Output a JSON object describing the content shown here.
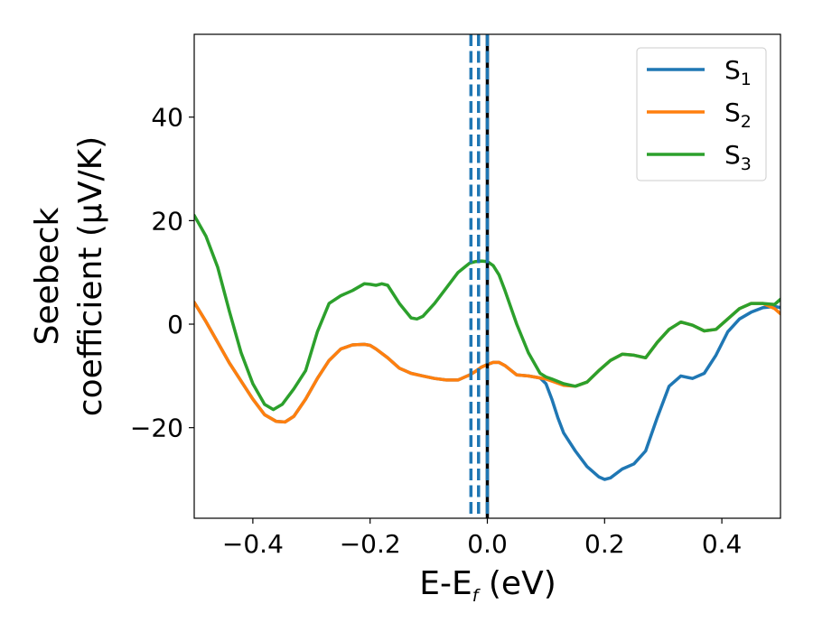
{
  "chart_data": {
    "type": "line",
    "xlabel": {
      "main": "E-E",
      "sub": "f",
      "tail": " (eV)"
    },
    "ylabel": {
      "line1": "Seebeck",
      "line2": "coefficient  (μV/K)"
    },
    "xlim": [
      -0.5,
      0.5
    ],
    "ylim": [
      -37.5,
      56
    ],
    "xticks": [
      -0.4,
      -0.2,
      0.0,
      0.2,
      0.4
    ],
    "xtick_labels": [
      "−0.4",
      "−0.2",
      "0.0",
      "0.2",
      "0.4"
    ],
    "yticks": [
      -20,
      0,
      20,
      40
    ],
    "ytick_labels": [
      "−20",
      "0",
      "20",
      "40"
    ],
    "grid": false,
    "legend_position": "top-right",
    "vlines": [
      {
        "x": -0.028,
        "style": "dashed",
        "color": "#1f77b4"
      },
      {
        "x": -0.015,
        "style": "dashed",
        "color": "#1f77b4"
      },
      {
        "x": 0.0,
        "style": "solid",
        "color": "#000000"
      },
      {
        "x": 0.0,
        "style": "dashed",
        "color": "#1f77b4"
      }
    ],
    "series": [
      {
        "name": "S",
        "sub": "1",
        "color": "#1f77b4",
        "x": [
          -0.5,
          -0.48,
          -0.46,
          -0.44,
          -0.42,
          -0.4,
          -0.38,
          -0.36,
          -0.345,
          -0.33,
          -0.31,
          -0.29,
          -0.27,
          -0.25,
          -0.23,
          -0.21,
          -0.2,
          -0.19,
          -0.17,
          -0.15,
          -0.13,
          -0.11,
          -0.09,
          -0.07,
          -0.05,
          -0.03,
          -0.02,
          -0.01,
          0.0,
          0.01,
          0.02,
          0.03,
          0.05,
          0.07,
          0.09,
          0.1,
          0.11,
          0.12,
          0.13,
          0.15,
          0.17,
          0.19,
          0.2,
          0.21,
          0.23,
          0.25,
          0.27,
          0.29,
          0.31,
          0.33,
          0.35,
          0.37,
          0.39,
          0.41,
          0.43,
          0.45,
          0.47,
          0.49,
          0.5
        ],
        "y": [
          4.2,
          0.5,
          -3.5,
          -7.5,
          -11,
          -14.5,
          -17.5,
          -18.8,
          -18.9,
          -17.8,
          -14.5,
          -10.5,
          -7,
          -4.8,
          -4,
          -3.9,
          -4.1,
          -4.8,
          -6.5,
          -8.5,
          -9.5,
          -10,
          -10.5,
          -10.8,
          -10.8,
          -9.8,
          -9.1,
          -8.3,
          -7.8,
          -7.4,
          -7.4,
          -8,
          -9.8,
          -10,
          -10.4,
          -11.5,
          -14.5,
          -18,
          -21,
          -24.5,
          -27.5,
          -29.5,
          -30,
          -29.7,
          -28,
          -27,
          -24.5,
          -18,
          -12,
          -10,
          -10.5,
          -9.5,
          -6,
          -1.5,
          1,
          2.3,
          3.2,
          3.4,
          3.2
        ]
      },
      {
        "name": "S",
        "sub": "2",
        "color": "#ff7f0e",
        "x": [
          -0.5,
          -0.48,
          -0.46,
          -0.44,
          -0.42,
          -0.4,
          -0.38,
          -0.36,
          -0.345,
          -0.33,
          -0.31,
          -0.29,
          -0.27,
          -0.25,
          -0.23,
          -0.21,
          -0.2,
          -0.19,
          -0.17,
          -0.15,
          -0.13,
          -0.11,
          -0.09,
          -0.07,
          -0.05,
          -0.03,
          -0.02,
          -0.01,
          0.0,
          0.01,
          0.02,
          0.03,
          0.05,
          0.07,
          0.09,
          0.1,
          0.11,
          0.13,
          0.15,
          0.17,
          0.19,
          0.21,
          0.23,
          0.25,
          0.27,
          0.29,
          0.31,
          0.33,
          0.35,
          0.37,
          0.39,
          0.41,
          0.43,
          0.45,
          0.47,
          0.49,
          0.5
        ],
        "y": [
          4.2,
          0.5,
          -3.5,
          -7.5,
          -11,
          -14.5,
          -17.5,
          -18.8,
          -18.9,
          -17.8,
          -14.5,
          -10.5,
          -7,
          -4.8,
          -4,
          -3.9,
          -4.1,
          -4.8,
          -6.5,
          -8.5,
          -9.5,
          -10,
          -10.5,
          -10.8,
          -10.8,
          -9.8,
          -9.1,
          -8.3,
          -7.8,
          -7.4,
          -7.4,
          -8,
          -9.8,
          -10,
          -10.4,
          -10.6,
          -11,
          -11.8,
          -12,
          -11.2,
          -9,
          -7,
          -5.8,
          -6,
          -6.5,
          -3.5,
          -1,
          0.4,
          -0.2,
          -1.3,
          -1,
          1,
          3,
          4,
          4,
          3,
          2
        ]
      },
      {
        "name": "S",
        "sub": "3",
        "color": "#2ca02c",
        "x": [
          -0.5,
          -0.48,
          -0.46,
          -0.44,
          -0.42,
          -0.4,
          -0.38,
          -0.365,
          -0.35,
          -0.33,
          -0.31,
          -0.29,
          -0.27,
          -0.25,
          -0.23,
          -0.21,
          -0.2,
          -0.19,
          -0.18,
          -0.17,
          -0.15,
          -0.13,
          -0.12,
          -0.11,
          -0.09,
          -0.07,
          -0.05,
          -0.03,
          -0.02,
          -0.01,
          0.0,
          0.01,
          0.02,
          0.03,
          0.05,
          0.07,
          0.09,
          0.1,
          0.11,
          0.13,
          0.15,
          0.17,
          0.19,
          0.21,
          0.23,
          0.25,
          0.27,
          0.29,
          0.31,
          0.33,
          0.35,
          0.37,
          0.39,
          0.41,
          0.43,
          0.45,
          0.47,
          0.49,
          0.5
        ],
        "y": [
          21,
          17,
          11,
          2.5,
          -5.5,
          -11.5,
          -15.5,
          -16.5,
          -15.5,
          -12.5,
          -9,
          -1.5,
          4,
          5.5,
          6.5,
          7.8,
          7.7,
          7.5,
          7.8,
          7.5,
          4,
          1.2,
          1,
          1.5,
          4,
          7,
          10,
          11.8,
          12.1,
          12.2,
          12.1,
          11.3,
          9.5,
          6.5,
          0,
          -5.5,
          -9.5,
          -10.2,
          -10.6,
          -11.5,
          -12,
          -11.2,
          -9,
          -7,
          -5.8,
          -6,
          -6.5,
          -3.5,
          -1,
          0.4,
          -0.2,
          -1.3,
          -1,
          1,
          3,
          4,
          4,
          3.8,
          4.8
        ]
      }
    ]
  }
}
